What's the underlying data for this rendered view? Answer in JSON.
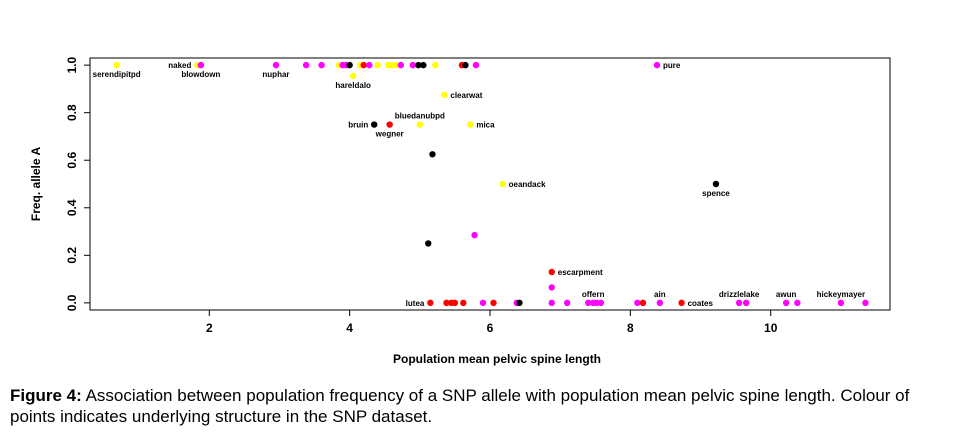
{
  "chart_data": {
    "type": "scatter",
    "xlabel": "Population mean pelvic spine length",
    "ylabel": "Freq. allele A",
    "xlim": [
      0.3,
      11.7
    ],
    "ylim": [
      -0.03,
      1.03
    ],
    "xticks": [
      2,
      4,
      6,
      8,
      10
    ],
    "yticks": [
      0.0,
      0.2,
      0.4,
      0.6,
      0.8,
      1.0
    ],
    "grid": false,
    "legend": "none",
    "colors": {
      "yellow": "#ffff00",
      "magenta": "#ff00ff",
      "red": "#ff0000",
      "black": "#000000"
    },
    "points": [
      {
        "x": 0.68,
        "y": 1.0,
        "color": "yellow",
        "label": "serendipitpd",
        "label_pos": "below"
      },
      {
        "x": 1.83,
        "y": 1.0,
        "color": "yellow",
        "label": "naked",
        "label_pos": "left"
      },
      {
        "x": 1.88,
        "y": 1.0,
        "color": "magenta",
        "label": "blowdown",
        "label_pos": "below"
      },
      {
        "x": 2.95,
        "y": 1.0,
        "color": "magenta",
        "label": "nuphar",
        "label_pos": "below"
      },
      {
        "x": 3.38,
        "y": 1.0,
        "color": "magenta"
      },
      {
        "x": 3.6,
        "y": 1.0,
        "color": "magenta"
      },
      {
        "x": 3.85,
        "y": 1.0,
        "color": "yellow"
      },
      {
        "x": 3.9,
        "y": 1.0,
        "color": "magenta"
      },
      {
        "x": 3.95,
        "y": 1.0,
        "color": "magenta"
      },
      {
        "x": 4.0,
        "y": 1.0,
        "color": "black"
      },
      {
        "x": 4.15,
        "y": 1.0,
        "color": "yellow"
      },
      {
        "x": 4.2,
        "y": 1.0,
        "color": "red"
      },
      {
        "x": 4.28,
        "y": 1.0,
        "color": "magenta"
      },
      {
        "x": 4.4,
        "y": 1.0,
        "color": "yellow"
      },
      {
        "x": 4.55,
        "y": 1.0,
        "color": "yellow"
      },
      {
        "x": 4.6,
        "y": 1.0,
        "color": "yellow"
      },
      {
        "x": 4.67,
        "y": 1.0,
        "color": "yellow"
      },
      {
        "x": 4.73,
        "y": 1.0,
        "color": "magenta"
      },
      {
        "x": 4.9,
        "y": 1.0,
        "color": "magenta"
      },
      {
        "x": 4.98,
        "y": 1.0,
        "color": "black"
      },
      {
        "x": 5.05,
        "y": 1.0,
        "color": "black"
      },
      {
        "x": 5.22,
        "y": 1.0,
        "color": "yellow"
      },
      {
        "x": 5.6,
        "y": 1.0,
        "color": "red"
      },
      {
        "x": 5.65,
        "y": 1.0,
        "color": "black"
      },
      {
        "x": 5.8,
        "y": 1.0,
        "color": "magenta"
      },
      {
        "x": 8.38,
        "y": 1.0,
        "color": "magenta",
        "label": "pure",
        "label_pos": "right"
      },
      {
        "x": 4.05,
        "y": 0.955,
        "color": "yellow",
        "label": "hareldalo",
        "label_pos": "below"
      },
      {
        "x": 5.35,
        "y": 0.875,
        "color": "yellow",
        "label": "clearwat",
        "label_pos": "right"
      },
      {
        "x": 4.35,
        "y": 0.75,
        "color": "black",
        "label": "bruin",
        "label_pos": "left"
      },
      {
        "x": 4.57,
        "y": 0.75,
        "color": "red",
        "label": "wegner",
        "label_pos": "below"
      },
      {
        "x": 5.0,
        "y": 0.75,
        "color": "yellow",
        "label": "bluedanubpd",
        "label_pos": "above"
      },
      {
        "x": 5.72,
        "y": 0.75,
        "color": "yellow",
        "label": "mica",
        "label_pos": "right"
      },
      {
        "x": 5.18,
        "y": 0.625,
        "color": "black"
      },
      {
        "x": 6.18,
        "y": 0.5,
        "color": "yellow",
        "label": "oeandack",
        "label_pos": "right"
      },
      {
        "x": 9.22,
        "y": 0.5,
        "color": "black",
        "label": "spence",
        "label_pos": "below"
      },
      {
        "x": 5.78,
        "y": 0.285,
        "color": "magenta"
      },
      {
        "x": 5.12,
        "y": 0.25,
        "color": "black"
      },
      {
        "x": 6.88,
        "y": 0.13,
        "color": "red",
        "label": "escarpment",
        "label_pos": "right"
      },
      {
        "x": 6.88,
        "y": 0.065,
        "color": "magenta"
      },
      {
        "x": 5.15,
        "y": 0.0,
        "color": "red",
        "label": "lutea",
        "label_pos": "left"
      },
      {
        "x": 5.38,
        "y": 0.0,
        "color": "red"
      },
      {
        "x": 5.45,
        "y": 0.0,
        "color": "red"
      },
      {
        "x": 5.5,
        "y": 0.0,
        "color": "red"
      },
      {
        "x": 5.62,
        "y": 0.0,
        "color": "red"
      },
      {
        "x": 5.9,
        "y": 0.0,
        "color": "magenta"
      },
      {
        "x": 6.05,
        "y": 0.0,
        "color": "red"
      },
      {
        "x": 6.38,
        "y": 0.0,
        "color": "magenta"
      },
      {
        "x": 6.42,
        "y": 0.0,
        "color": "black"
      },
      {
        "x": 6.88,
        "y": 0.0,
        "color": "magenta"
      },
      {
        "x": 7.1,
        "y": 0.0,
        "color": "magenta"
      },
      {
        "x": 7.4,
        "y": 0.0,
        "color": "magenta"
      },
      {
        "x": 7.47,
        "y": 0.0,
        "color": "magenta",
        "label": "offern",
        "label_pos": "above"
      },
      {
        "x": 7.52,
        "y": 0.0,
        "color": "magenta"
      },
      {
        "x": 7.58,
        "y": 0.0,
        "color": "magenta"
      },
      {
        "x": 8.1,
        "y": 0.0,
        "color": "magenta"
      },
      {
        "x": 8.18,
        "y": 0.0,
        "color": "red"
      },
      {
        "x": 8.42,
        "y": 0.0,
        "color": "magenta",
        "label": "ain",
        "label_pos": "above"
      },
      {
        "x": 8.73,
        "y": 0.0,
        "color": "red",
        "label": "coates",
        "label_pos": "right"
      },
      {
        "x": 9.55,
        "y": 0.0,
        "color": "magenta",
        "label": "drizzlelake",
        "label_pos": "above"
      },
      {
        "x": 9.65,
        "y": 0.0,
        "color": "magenta"
      },
      {
        "x": 10.22,
        "y": 0.0,
        "color": "magenta",
        "label": "awun",
        "label_pos": "above"
      },
      {
        "x": 10.38,
        "y": 0.0,
        "color": "magenta"
      },
      {
        "x": 11.0,
        "y": 0.0,
        "color": "magenta",
        "label": "hickeymayer",
        "label_pos": "above"
      },
      {
        "x": 11.35,
        "y": 0.0,
        "color": "magenta"
      }
    ]
  },
  "caption": {
    "label": "Figure 4:",
    "text": " Association between population frequency of a SNP allele with population mean pelvic spine length. Colour of points indicates underlying structure in the SNP dataset."
  }
}
